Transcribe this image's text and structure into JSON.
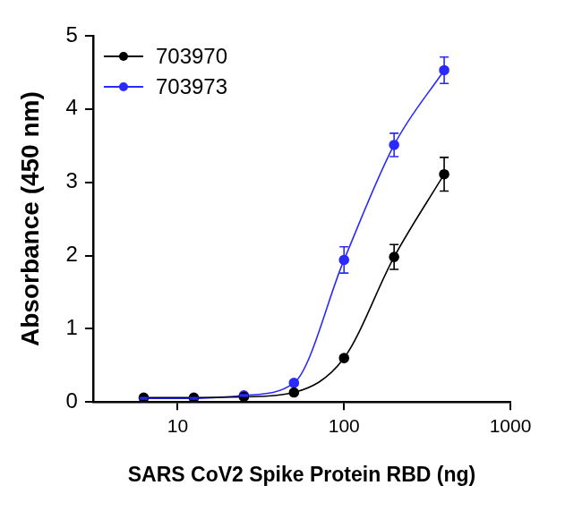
{
  "chart_data": {
    "type": "line",
    "x_label": "SARS CoV2 Spike Protein RBD (ng)",
    "y_label": "Absorbance (450 nm)",
    "x": [
      6.25,
      12.5,
      25,
      50,
      100,
      200,
      400
    ],
    "series": [
      {
        "name": "703970",
        "color": "#000000",
        "marker": "circle",
        "line_style": "solid",
        "values": [
          0.06,
          0.06,
          0.07,
          0.13,
          0.6,
          1.98,
          3.11
        ],
        "errors": [
          0.01,
          0.01,
          0.01,
          0.02,
          0.03,
          0.17,
          0.23
        ]
      },
      {
        "name": "703973",
        "color": "#2a2aff",
        "marker": "circle",
        "line_style": "solid",
        "values": [
          0.05,
          0.05,
          0.09,
          0.26,
          1.94,
          3.51,
          4.53
        ],
        "errors": [
          0.01,
          0.01,
          0.01,
          0.03,
          0.18,
          0.16,
          0.18
        ]
      }
    ],
    "log": "x",
    "xlim": [
      3.1,
      1000
    ],
    "xticks": [
      10,
      100,
      1000
    ],
    "ylim": [
      0,
      5
    ],
    "yticks": [
      0,
      1,
      2,
      3,
      4,
      5
    ],
    "grid": false,
    "legend": "top-left"
  }
}
